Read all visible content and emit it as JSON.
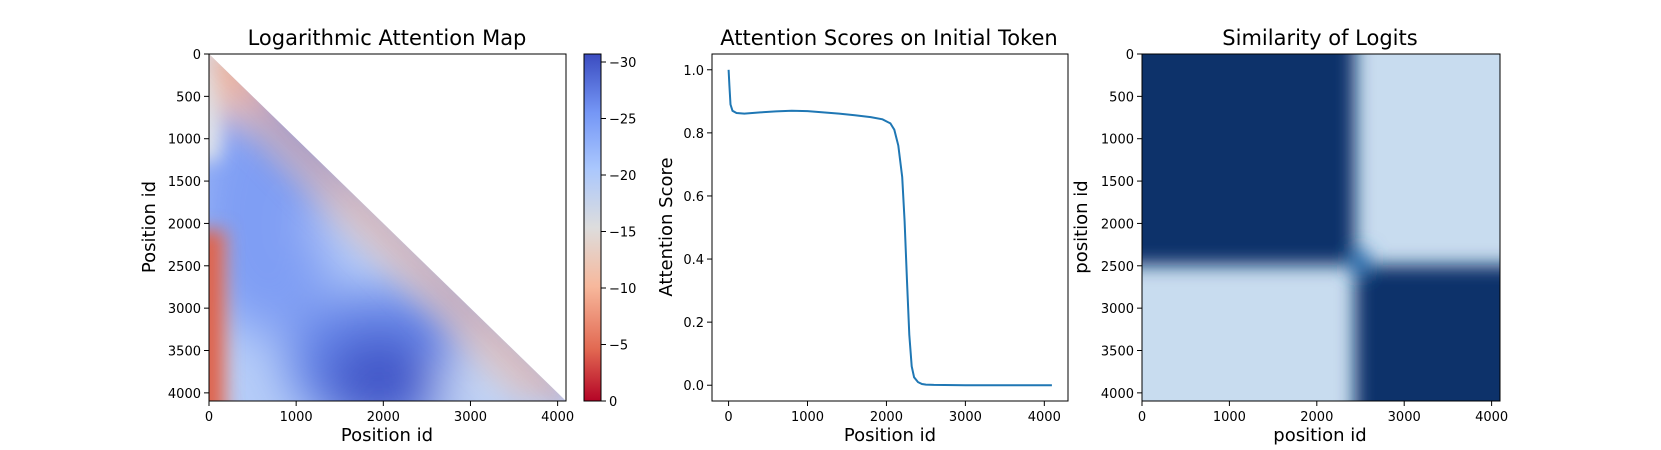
{
  "chart_data": [
    {
      "type": "heatmap",
      "title": "Logarithmic Attention Map",
      "xlabel": "Position id",
      "ylabel": "Position id",
      "xlim": [
        0,
        4096
      ],
      "ylim": [
        4096,
        0
      ],
      "xticks": [
        0,
        1000,
        2000,
        3000,
        4000
      ],
      "xtick_labels": [
        "0",
        "1000",
        "2000",
        "3000",
        "4000"
      ],
      "yticks": [
        0,
        500,
        1000,
        1500,
        2000,
        2500,
        3000,
        3500,
        4000
      ],
      "ytick_labels": [
        "0",
        "500",
        "1000",
        "1500",
        "2000",
        "2500",
        "3000",
        "3500",
        "4000"
      ],
      "masked_region": "upper triangle (key position > query position) is blank",
      "colormap": "coolwarm_r",
      "colorbar": {
        "range": [
          0,
          -30
        ],
        "ticks": [
          0,
          -5,
          -10,
          -15,
          -20,
          -25,
          -30
        ],
        "tick_labels": [
          "0",
          "−5",
          "−10",
          "−15",
          "−20",
          "−25",
          "−30"
        ],
        "colors": [
          "#b40426",
          "#dddddd",
          "#3b4cc0"
        ]
      },
      "field_samples": {
        "description": "approximate log attention value (approx.) for query row y at key column x",
        "points": [
          {
            "x": 0,
            "y": 3500,
            "value": -6
          },
          {
            "x": 400,
            "y": 3500,
            "value": -14
          },
          {
            "x": 1800,
            "y": 3700,
            "value": -29
          },
          {
            "x": 600,
            "y": 1700,
            "value": -22
          },
          {
            "x": 1800,
            "y": 2200,
            "value": -15
          },
          {
            "x": 3700,
            "y": 4000,
            "value": -16
          },
          {
            "x": 100,
            "y": 300,
            "value": -10
          }
        ]
      }
    },
    {
      "type": "line",
      "title": "Attention Scores on Initial Token",
      "xlabel": "Position id",
      "ylabel": "Attention Score",
      "xlim": [
        -210,
        4300
      ],
      "ylim": [
        -0.05,
        1.05
      ],
      "xticks": [
        0,
        1000,
        2000,
        3000,
        4000
      ],
      "xtick_labels": [
        "0",
        "1000",
        "2000",
        "3000",
        "4000"
      ],
      "yticks": [
        0.0,
        0.2,
        0.4,
        0.6,
        0.8,
        1.0
      ],
      "ytick_labels": [
        "0.0",
        "0.2",
        "0.4",
        "0.6",
        "0.8",
        "1.0"
      ],
      "color": "#1f77b4",
      "x": [
        0,
        10,
        25,
        50,
        100,
        200,
        400,
        600,
        800,
        1000,
        1200,
        1400,
        1600,
        1800,
        1950,
        2050,
        2100,
        2150,
        2200,
        2230,
        2260,
        2290,
        2320,
        2350,
        2400,
        2450,
        2500,
        2600,
        3000,
        3500,
        4000,
        4096
      ],
      "y": [
        1.0,
        0.95,
        0.89,
        0.87,
        0.863,
        0.861,
        0.865,
        0.868,
        0.87,
        0.869,
        0.865,
        0.861,
        0.856,
        0.85,
        0.843,
        0.83,
        0.81,
        0.76,
        0.66,
        0.52,
        0.33,
        0.16,
        0.06,
        0.025,
        0.01,
        0.004,
        0.002,
        0.001,
        0.0,
        0.0,
        0.0,
        0.0
      ]
    },
    {
      "type": "heatmap",
      "title": "Similarity of Logits",
      "xlabel": "position id",
      "ylabel": "position id",
      "xlim": [
        0,
        4096
      ],
      "ylim": [
        4096,
        0
      ],
      "xticks": [
        0,
        1000,
        2000,
        3000,
        4000
      ],
      "xtick_labels": [
        "0",
        "1000",
        "2000",
        "3000",
        "4000"
      ],
      "yticks": [
        0,
        500,
        1000,
        1500,
        2000,
        2500,
        3000,
        3500,
        4000
      ],
      "ytick_labels": [
        "0",
        "500",
        "1000",
        "1500",
        "2000",
        "2500",
        "3000",
        "3500",
        "4000"
      ],
      "colormap": "Blues",
      "colors": [
        "#c8dcef",
        "#08306b"
      ],
      "block_boundary": 2450,
      "blocks": [
        {
          "rows": [
            0,
            2450
          ],
          "cols": [
            0,
            2450
          ],
          "similarity": "high"
        },
        {
          "rows": [
            0,
            2450
          ],
          "cols": [
            2450,
            4096
          ],
          "similarity": "low"
        },
        {
          "rows": [
            2450,
            4096
          ],
          "cols": [
            0,
            2450
          ],
          "similarity": "low"
        },
        {
          "rows": [
            2450,
            4096
          ],
          "cols": [
            2450,
            4096
          ],
          "similarity": "high"
        }
      ]
    }
  ]
}
